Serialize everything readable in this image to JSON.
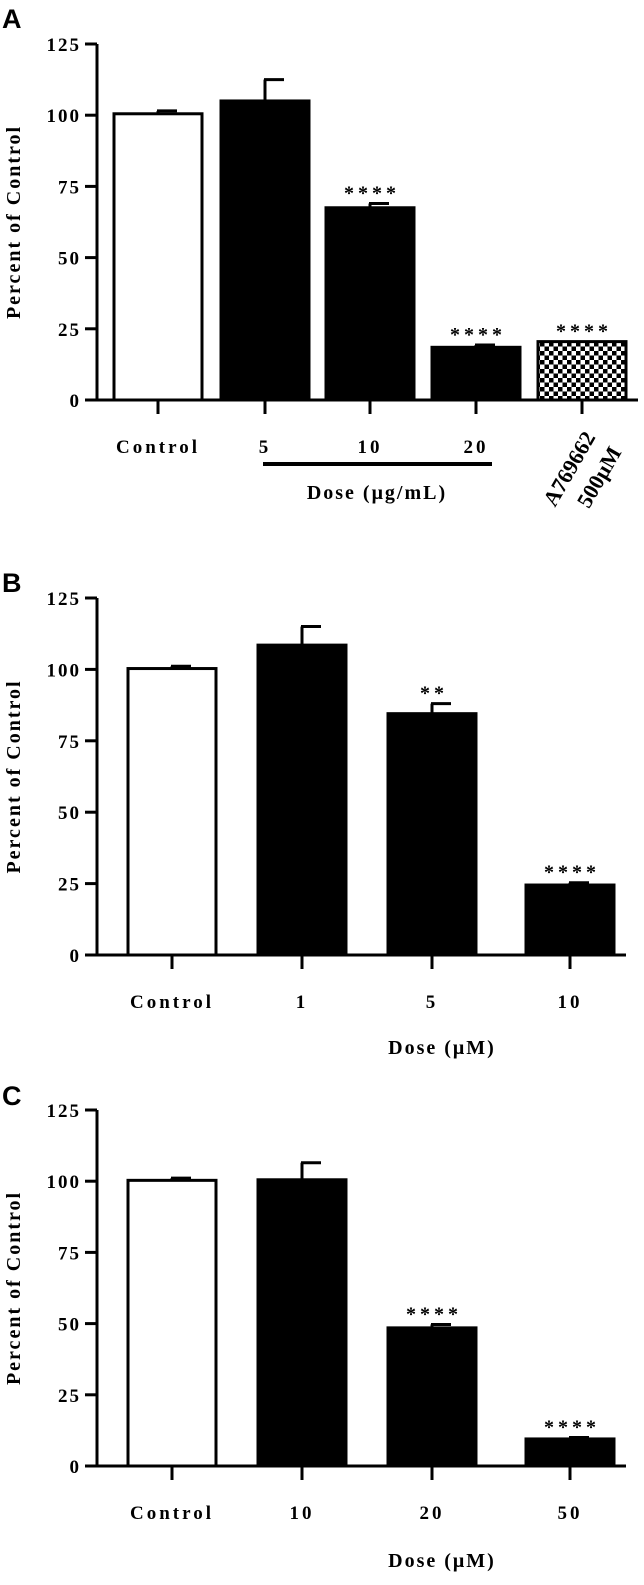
{
  "chart_data": [
    {
      "panel": "A",
      "type": "bar",
      "ylabel": "Percent of Control",
      "ylim": [
        0,
        125
      ],
      "yticks": [
        "0",
        "25",
        "50",
        "75",
        "100",
        "125"
      ],
      "categories": [
        "Control",
        "5",
        "10",
        "20",
        "A769662 500μM"
      ],
      "values": [
        100.5,
        105,
        67.5,
        18.5,
        20.5
      ],
      "errors": [
        1,
        7.5,
        1.5,
        0.8,
        0
      ],
      "fills": [
        "white",
        "black",
        "black",
        "black",
        "checker"
      ],
      "significance": [
        "",
        "",
        "****",
        "****",
        "****"
      ],
      "group_label": "Dose (μg/mL)",
      "rotated_category_lines": [
        "A769662",
        "500μM"
      ]
    },
    {
      "panel": "B",
      "type": "bar",
      "ylabel": "Percent of Control",
      "xlabel": "Dose (μM)",
      "ylim": [
        0,
        125
      ],
      "yticks": [
        "0",
        "25",
        "50",
        "75",
        "100",
        "125"
      ],
      "categories": [
        "Control",
        "1",
        "5",
        "10"
      ],
      "values": [
        100.3,
        108.5,
        84.5,
        24.5
      ],
      "errors": [
        0.8,
        6.5,
        3.5,
        0.8
      ],
      "fills": [
        "white",
        "black",
        "black",
        "black"
      ],
      "significance": [
        "",
        "",
        "**",
        "****"
      ]
    },
    {
      "panel": "C",
      "type": "bar",
      "ylabel": "Percent of Control",
      "xlabel": "Dose (μM)",
      "ylim": [
        0,
        125
      ],
      "yticks": [
        "0",
        "25",
        "50",
        "75",
        "100",
        "125"
      ],
      "categories": [
        "Control",
        "10",
        "20",
        "50"
      ],
      "values": [
        100.3,
        100.5,
        48.5,
        9.5
      ],
      "errors": [
        0.8,
        6,
        1.2,
        0.5
      ],
      "fills": [
        "white",
        "black",
        "black",
        "black"
      ],
      "significance": [
        "",
        "",
        "****",
        "****"
      ]
    }
  ]
}
